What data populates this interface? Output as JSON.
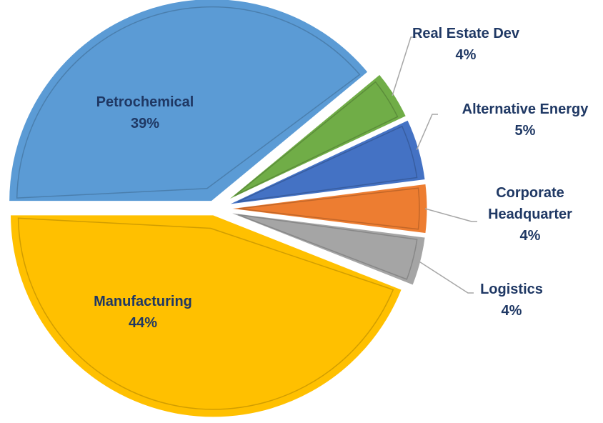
{
  "chart_data": {
    "type": "pie",
    "categories": [
      "Petrochemical",
      "Real Estate Dev",
      "Alternative Energy",
      "Corporate Headquarter",
      "Logistics",
      "Manufacturing"
    ],
    "values": [
      39,
      4,
      5,
      4,
      4,
      44
    ],
    "value_labels": [
      "39%",
      "4%",
      "5%",
      "4%",
      "4%",
      "44%"
    ],
    "colors": [
      "#5b9bd5",
      "#70ad47",
      "#4472c4",
      "#ed7d31",
      "#a5a5a5",
      "#ffc000"
    ]
  }
}
